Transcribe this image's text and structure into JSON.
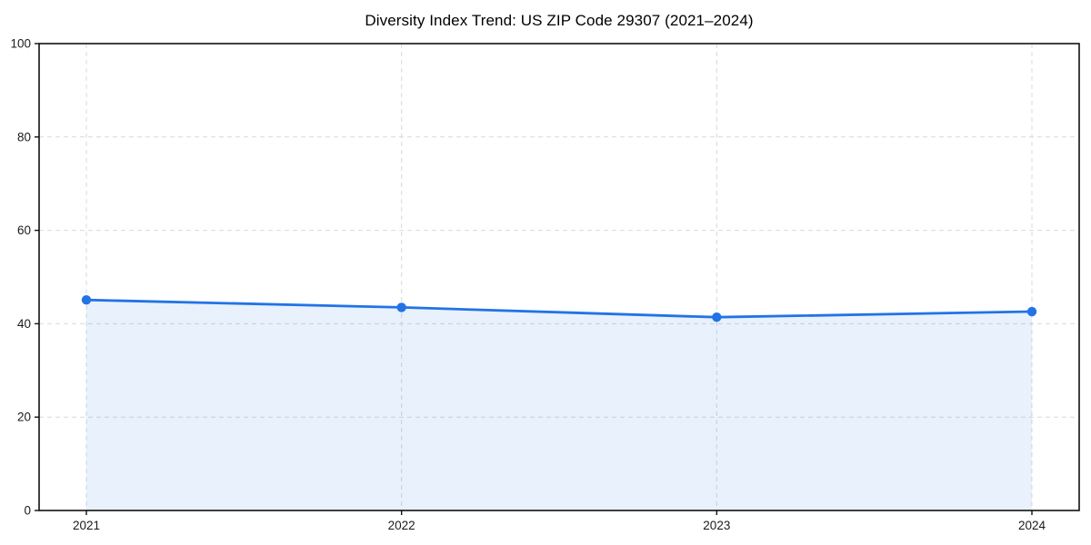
{
  "chart_data": {
    "type": "line",
    "title": "Diversity Index Trend: US ZIP Code 29307 (2021–2024)",
    "xlabel": "",
    "ylabel": "",
    "x": [
      2021,
      2022,
      2023,
      2024
    ],
    "x_labels": [
      "2021",
      "2022",
      "2023",
      "2024"
    ],
    "series": [
      {
        "name": "Diversity Index",
        "values": [
          45.1,
          43.5,
          41.4,
          42.6
        ]
      }
    ],
    "ylim": [
      0,
      100
    ],
    "xlim": [
      2020.85,
      2024.15
    ],
    "yticks": [
      0,
      20,
      40,
      60,
      80,
      100
    ],
    "ytick_labels": [
      "0",
      "20",
      "40",
      "60",
      "80",
      "100"
    ],
    "grid": true,
    "grid_style": "dashed",
    "legend_position": "none",
    "area_fill": true,
    "marker": "circle",
    "style": {
      "line_color": "#2273e6",
      "marker_color": "#2273e6",
      "fill_color": "#2273e6",
      "fill_opacity": 0.1,
      "grid_color": "#d9d9d9",
      "spine_color": "#111111",
      "tick_text_color": "#1a1a1a",
      "background": "#ffffff"
    }
  }
}
